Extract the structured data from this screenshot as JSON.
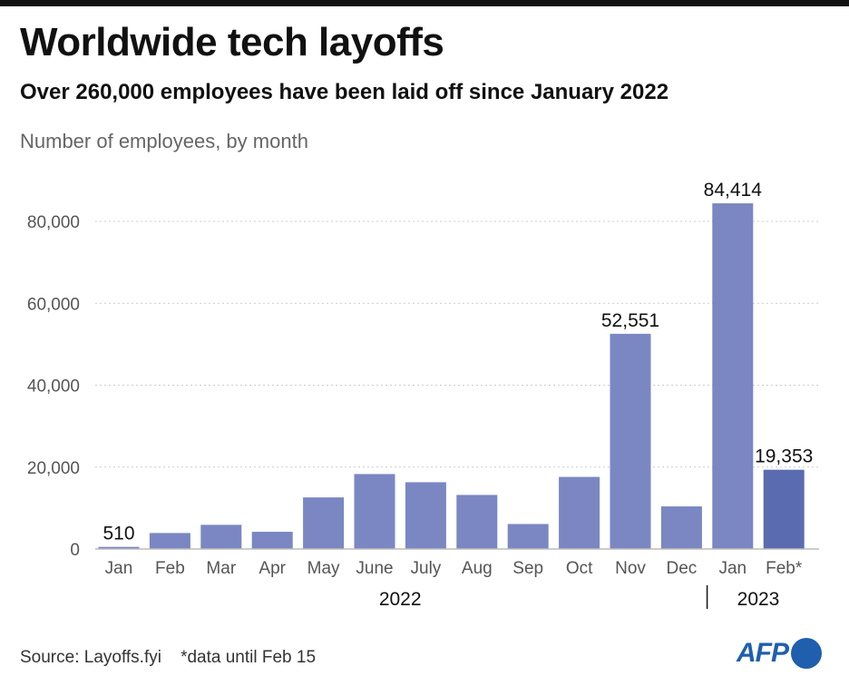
{
  "header": {
    "title": "Worldwide tech layoffs",
    "subtitle": "Over 260,000 employees have been laid off since January 2022",
    "unit_label": "Number of employees, by month"
  },
  "footer": {
    "source": "Source: Layoffs.fyi",
    "note": "*data until Feb 15",
    "logo": "AFP"
  },
  "colors": {
    "bar": "#7a87c2",
    "bar_highlight": "#5b6bb0",
    "logo": "#1f5fae"
  },
  "chart_data": {
    "type": "bar",
    "title": "Worldwide tech layoffs",
    "categories": [
      "Jan",
      "Feb",
      "Mar",
      "Apr",
      "May",
      "June",
      "July",
      "Aug",
      "Sep",
      "Oct",
      "Nov",
      "Dec",
      "Jan",
      "Feb*"
    ],
    "year_groups": [
      {
        "label": "2022",
        "from": 0,
        "to": 11
      },
      {
        "label": "2023",
        "from": 12,
        "to": 13
      }
    ],
    "values": [
      510,
      3900,
      5900,
      4200,
      12600,
      18300,
      16300,
      13200,
      6100,
      17600,
      52551,
      10400,
      84414,
      19353
    ],
    "data_labels": {
      "0": "510",
      "10": "52,551",
      "12": "84,414",
      "13": "19,353"
    },
    "highlight_index": 13,
    "ylim": [
      0,
      90000
    ],
    "yticks": [
      0,
      20000,
      40000,
      60000,
      80000
    ],
    "ytick_labels": [
      "0",
      "20,000",
      "40,000",
      "60,000",
      "80,000"
    ],
    "grid": true,
    "xlabel": "",
    "ylabel": ""
  }
}
